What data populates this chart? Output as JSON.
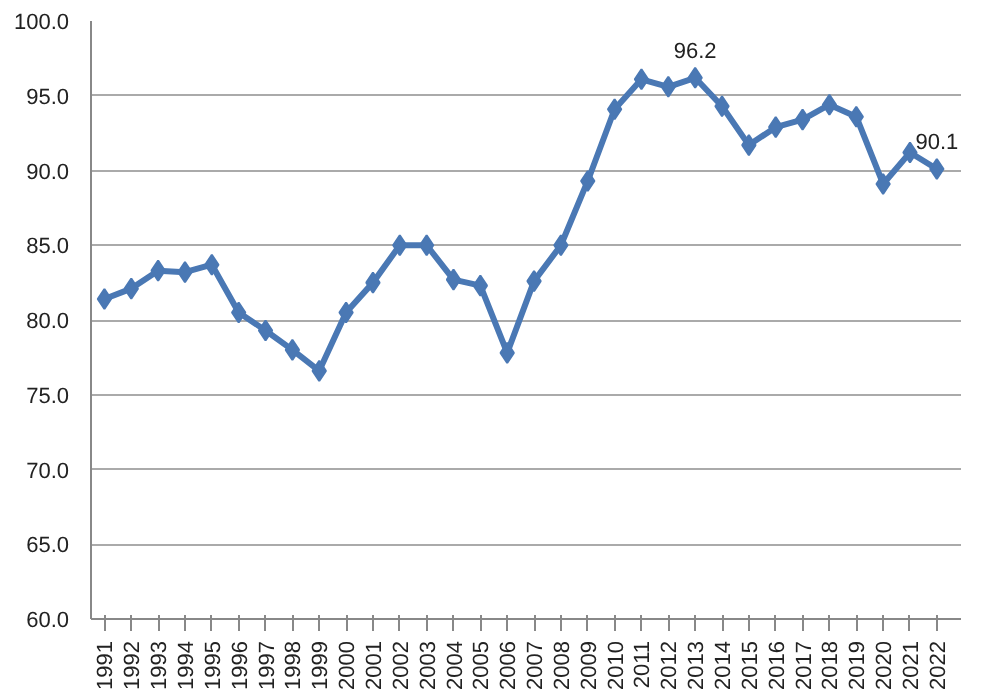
{
  "chart_data": {
    "type": "line",
    "categories": [
      "1991",
      "1992",
      "1993",
      "1994",
      "1995",
      "1996",
      "1997",
      "1998",
      "1999",
      "2000",
      "2001",
      "2002",
      "2003",
      "2004",
      "2005",
      "2006",
      "2007",
      "2008",
      "2009",
      "2010",
      "2011",
      "2012",
      "2013",
      "2014",
      "2015",
      "2016",
      "2017",
      "2018",
      "2019",
      "2020",
      "2021",
      "2022"
    ],
    "series": [
      {
        "color": "#4a78b4",
        "values": [
          81.4,
          82.1,
          83.3,
          83.2,
          83.7,
          80.5,
          79.3,
          78.0,
          76.6,
          80.5,
          82.5,
          85.0,
          85.0,
          82.7,
          82.3,
          77.8,
          82.6,
          85.0,
          89.3,
          94.1,
          96.1,
          95.6,
          96.2,
          94.3,
          91.7,
          92.9,
          93.4,
          94.4,
          93.6,
          89.1,
          91.2,
          90.1
        ],
        "value_labels": [
          null,
          null,
          null,
          null,
          null,
          null,
          null,
          null,
          null,
          null,
          null,
          null,
          null,
          null,
          null,
          null,
          null,
          null,
          null,
          null,
          null,
          null,
          "96.2",
          null,
          null,
          null,
          null,
          null,
          null,
          null,
          null,
          "90.1"
        ]
      }
    ],
    "ylim": [
      60,
      100
    ],
    "yticks": [
      {
        "value": 60,
        "label": "60.0"
      },
      {
        "value": 65,
        "label": "65.0"
      },
      {
        "value": 70,
        "label": "70.0"
      },
      {
        "value": 75,
        "label": "75.0"
      },
      {
        "value": 80,
        "label": "80.0"
      },
      {
        "value": 85,
        "label": "85.0"
      },
      {
        "value": 90,
        "label": "90.0"
      },
      {
        "value": 95,
        "label": "95.0"
      },
      {
        "value": 100,
        "label": "100.0"
      }
    ],
    "grid": "y",
    "marker": "diamond",
    "line_style": "solid"
  }
}
